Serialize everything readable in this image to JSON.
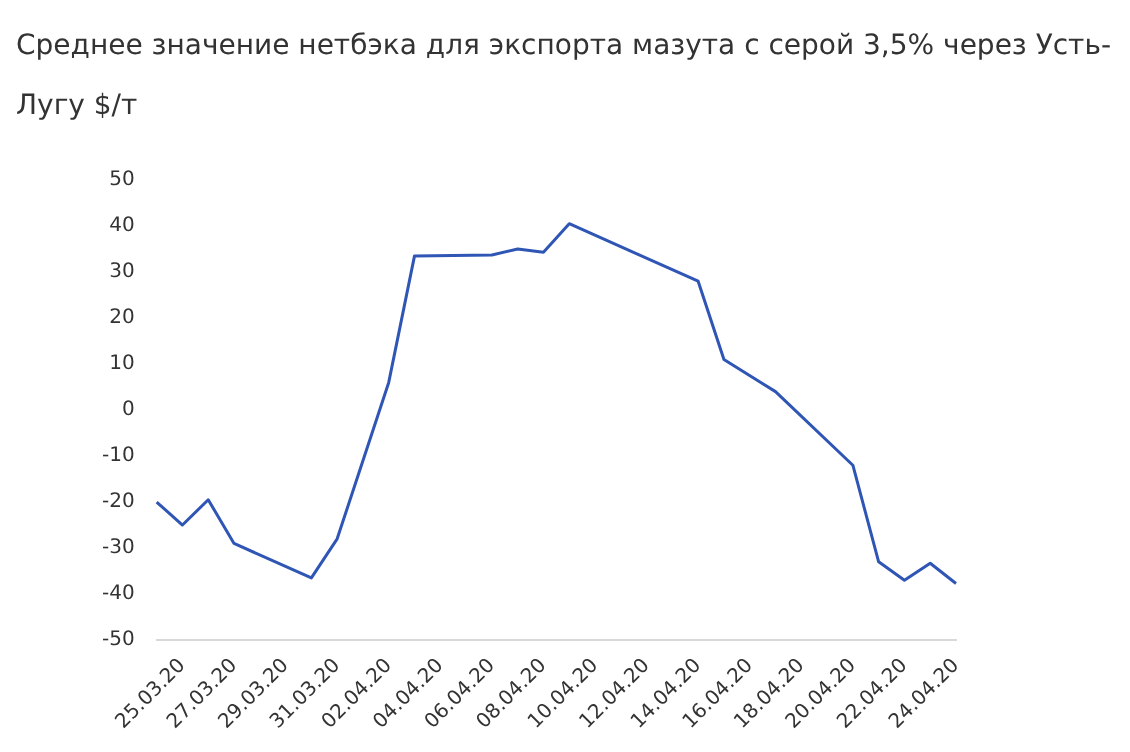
{
  "chart_data": {
    "type": "line",
    "title": "Среднее значение нетбэка для экспорта мазута с серой 3,5% через Усть-Лугу $/т",
    "categories": [
      null,
      "25.03.20",
      null,
      "27.03.20",
      null,
      "29.03.20",
      null,
      "31.03.20",
      null,
      "02.04.20",
      null,
      "04.04.20",
      null,
      "06.04.20",
      null,
      "08.04.20",
      null,
      "10.04.20",
      null,
      "12.04.20",
      null,
      "14.04.20",
      null,
      "16.04.20",
      null,
      "18.04.20",
      null,
      "20.04.20",
      null,
      "22.04.20",
      null,
      "24.04.20"
    ],
    "series": [
      {
        "color": "#2f55b5",
        "values": [
          -20,
          -25,
          -19.5,
          -29,
          null,
          null,
          -36.5,
          -28,
          null,
          6,
          33.5,
          null,
          null,
          33.7,
          35,
          34.3,
          40.5,
          null,
          null,
          null,
          null,
          28,
          11,
          null,
          4,
          null,
          null,
          -12,
          -33,
          -37,
          -33.3,
          -37.7
        ]
      }
    ],
    "ylim": [
      -50,
      50
    ],
    "yticks": [
      -50,
      -40,
      -30,
      -20,
      -10,
      0,
      10,
      20,
      30,
      40,
      50
    ],
    "grid": false,
    "legend": false,
    "marker": "none",
    "line_style": "solid"
  }
}
